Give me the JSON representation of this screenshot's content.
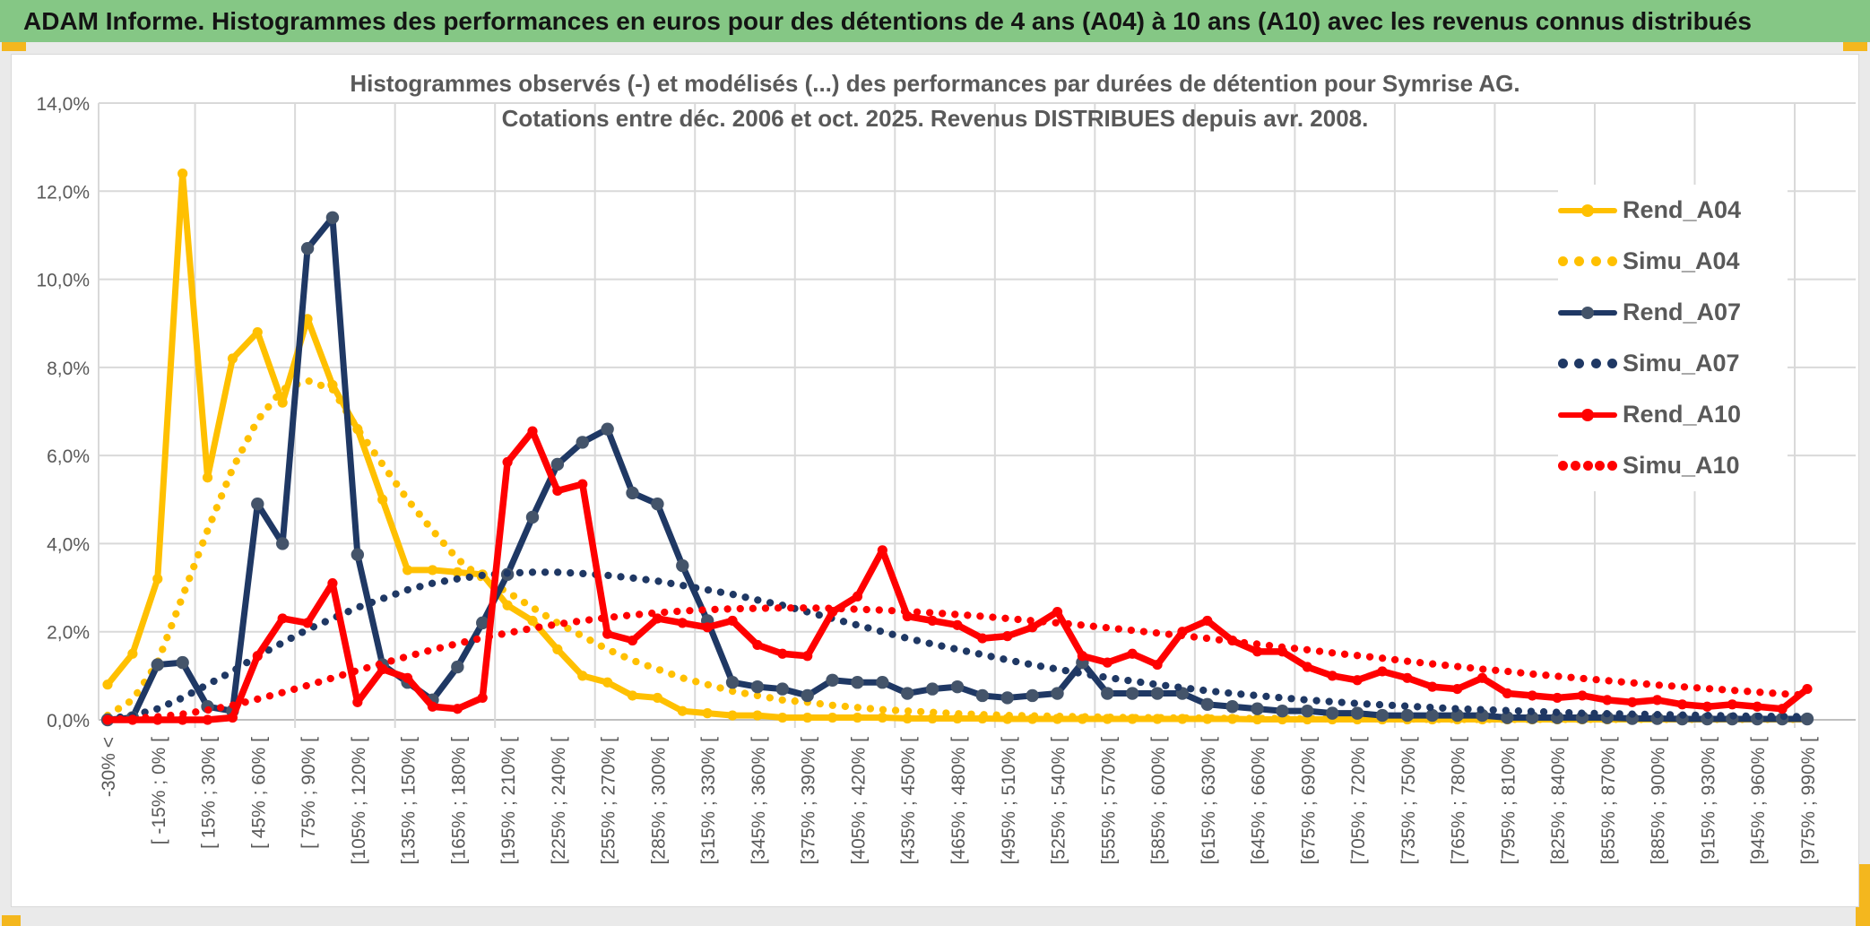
{
  "header": {
    "title": "ADAM Informe. Histogrammes des performances en euros pour des détentions de 4 ans (A04) à 10 ans (A10) avec les revenus connus distribués"
  },
  "chart_data": {
    "type": "line",
    "title_line1": "Histogrammes observés (-) et modélisés (...) des performances par durées de détention pour Symrise AG.",
    "title_line2": "Cotations entre déc. 2006 et oct. 2025. Revenus DISTRIBUES depuis avr. 2008.",
    "xlabel": "",
    "ylabel": "",
    "ylim": [
      0,
      14
    ],
    "grid": true,
    "legend_position": "right",
    "n_bins": 69,
    "bin_width_pct": 15,
    "labels_every_n_bins": 2,
    "y_ticks": [
      "0,0%",
      "2,0%",
      "4,0%",
      "6,0%",
      "8,0%",
      "10,0%",
      "12,0%",
      "14,0%"
    ],
    "x_tick_labels": [
      "-30% <",
      "[ -15% ; 0% [",
      "[ 15% ; 30% [",
      "[ 45% ; 60% [",
      "[ 75% ; 90% [",
      "[105% ; 120% [",
      "[135% ; 150% [",
      "[165% ; 180% [",
      "[195% ; 210% [",
      "[225% ; 240% [",
      "[255% ; 270% [",
      "[285% ; 300% [",
      "[315% ; 330% [",
      "[345% ; 360% [",
      "[375% ; 390% [",
      "[405% ; 420% [",
      "[435% ; 450% [",
      "[465% ; 480% [",
      "[495% ; 510% [",
      "[525% ; 540% [",
      "[555% ; 570% [",
      "[585% ; 600% [",
      "[615% ; 630% [",
      "[645% ; 660% [",
      "[675% ; 690% [",
      "[705% ; 720% [",
      "[735% ; 750% [",
      "[765% ; 780% [",
      "[795% ; 810% [",
      "[825% ; 840% [",
      "[855% ; 870% [",
      "[885% ; 900% [",
      "[915% ; 930% [",
      "[945% ; 960% [",
      "[975% ; 990% ["
    ],
    "series": [
      {
        "name": "Rend_A04",
        "style": "solid",
        "color": "#FFC000",
        "marker": "#FFC000",
        "values": [
          0.8,
          1.5,
          3.2,
          12.4,
          5.5,
          8.2,
          8.8,
          7.2,
          9.1,
          7.6,
          6.6,
          5.0,
          3.4,
          3.4,
          3.35,
          3.3,
          2.6,
          2.25,
          1.6,
          1.0,
          0.85,
          0.55,
          0.5,
          0.2,
          0.15,
          0.1,
          0.1,
          0.05,
          0.05,
          0.05,
          0.05,
          0.05,
          0.03,
          0.03,
          0.03,
          0.03,
          0.02,
          0.02,
          0.02,
          0.02,
          0.02,
          0.02,
          0.02,
          0.02,
          0.02,
          0.02,
          0.01,
          0.01,
          0.01,
          0.01,
          0.01,
          0.01,
          0.01,
          0.01,
          0.01,
          0.01,
          0.01,
          0.01,
          0.01,
          0.01,
          0.01,
          0.01,
          0.01,
          0.01,
          0.01,
          0.01,
          0.01,
          0.01,
          0.01
        ]
      },
      {
        "name": "Simu_A04",
        "style": "dotted",
        "color": "#FFC000",
        "values": [
          0.1,
          0.45,
          1.3,
          2.8,
          4.3,
          5.7,
          6.8,
          7.5,
          7.7,
          7.5,
          6.6,
          5.8,
          5.0,
          4.3,
          3.65,
          3.2,
          2.9,
          2.55,
          2.2,
          1.9,
          1.6,
          1.35,
          1.15,
          0.95,
          0.8,
          0.65,
          0.55,
          0.45,
          0.4,
          0.33,
          0.28,
          0.23,
          0.2,
          0.17,
          0.14,
          0.12,
          0.1,
          0.09,
          0.08,
          0.07,
          0.06,
          0.05,
          0.05,
          0.04,
          0.04,
          0.03,
          0.03,
          0.03,
          0.02,
          0.02,
          0.02,
          0.02,
          0.02,
          0.01,
          0.01,
          0.01,
          0.01,
          0.01,
          0.01,
          0.01,
          0.01,
          0.01,
          0.01,
          0.01,
          0.01,
          0.01,
          0.01,
          0.01,
          0.01
        ]
      },
      {
        "name": "Rend_A07",
        "style": "solid",
        "color": "#1F3864",
        "marker": "#44546A",
        "values": [
          0,
          0.05,
          1.25,
          1.3,
          0.3,
          0.2,
          4.9,
          4.0,
          10.7,
          11.4,
          3.75,
          1.25,
          0.85,
          0.45,
          1.2,
          2.2,
          3.3,
          4.6,
          5.8,
          6.3,
          6.6,
          5.15,
          4.9,
          3.5,
          2.25,
          0.85,
          0.75,
          0.7,
          0.55,
          0.9,
          0.85,
          0.85,
          0.6,
          0.7,
          0.75,
          0.55,
          0.5,
          0.55,
          0.6,
          1.3,
          0.6,
          0.6,
          0.6,
          0.6,
          0.35,
          0.3,
          0.25,
          0.2,
          0.2,
          0.15,
          0.15,
          0.1,
          0.1,
          0.1,
          0.1,
          0.1,
          0.05,
          0.05,
          0.05,
          0.05,
          0.05,
          0.03,
          0.03,
          0.02,
          0.02,
          0.02,
          0.02,
          0.02,
          0.02
        ]
      },
      {
        "name": "Simu_A07",
        "style": "dotted",
        "color": "#1F3864",
        "values": [
          0.02,
          0.1,
          0.25,
          0.5,
          0.8,
          1.1,
          1.45,
          1.75,
          2.05,
          2.3,
          2.55,
          2.75,
          2.95,
          3.1,
          3.2,
          3.28,
          3.33,
          3.35,
          3.35,
          3.32,
          3.28,
          3.22,
          3.15,
          3.05,
          2.95,
          2.85,
          2.72,
          2.6,
          2.45,
          2.3,
          2.15,
          2.0,
          1.85,
          1.72,
          1.6,
          1.48,
          1.36,
          1.25,
          1.15,
          1.05,
          0.96,
          0.88,
          0.8,
          0.73,
          0.66,
          0.6,
          0.55,
          0.5,
          0.45,
          0.41,
          0.37,
          0.34,
          0.31,
          0.28,
          0.25,
          0.23,
          0.21,
          0.19,
          0.17,
          0.15,
          0.14,
          0.13,
          0.12,
          0.11,
          0.1,
          0.09,
          0.08,
          0.08,
          0.07
        ]
      },
      {
        "name": "Rend_A10",
        "style": "solid",
        "color": "#FF0000",
        "marker": "#FF0000",
        "values": [
          0,
          0,
          0,
          0,
          0,
          0.05,
          1.45,
          2.3,
          2.2,
          3.1,
          0.4,
          1.15,
          0.95,
          0.3,
          0.25,
          0.5,
          5.85,
          6.55,
          5.2,
          5.35,
          1.95,
          1.8,
          2.3,
          2.2,
          2.1,
          2.25,
          1.7,
          1.5,
          1.45,
          2.45,
          2.8,
          3.85,
          2.35,
          2.25,
          2.15,
          1.85,
          1.9,
          2.1,
          2.45,
          1.45,
          1.3,
          1.5,
          1.25,
          2.0,
          2.25,
          1.8,
          1.55,
          1.55,
          1.2,
          1.0,
          0.9,
          1.1,
          0.95,
          0.75,
          0.7,
          0.95,
          0.6,
          0.55,
          0.5,
          0.55,
          0.45,
          0.4,
          0.45,
          0.35,
          0.3,
          0.35,
          0.3,
          0.25,
          0.7
        ]
      },
      {
        "name": "Simu_A10",
        "style": "dotted",
        "color": "#FF0000",
        "values": [
          0.01,
          0.03,
          0.07,
          0.13,
          0.22,
          0.33,
          0.47,
          0.62,
          0.78,
          0.95,
          1.12,
          1.28,
          1.44,
          1.59,
          1.73,
          1.86,
          1.97,
          2.08,
          2.17,
          2.25,
          2.32,
          2.38,
          2.43,
          2.47,
          2.5,
          2.52,
          2.53,
          2.54,
          2.54,
          2.53,
          2.51,
          2.49,
          2.46,
          2.43,
          2.39,
          2.35,
          2.3,
          2.25,
          2.2,
          2.15,
          2.09,
          2.03,
          1.97,
          1.91,
          1.85,
          1.78,
          1.72,
          1.65,
          1.59,
          1.52,
          1.46,
          1.4,
          1.33,
          1.27,
          1.21,
          1.15,
          1.1,
          1.04,
          0.99,
          0.94,
          0.89,
          0.84,
          0.79,
          0.75,
          0.71,
          0.67,
          0.63,
          0.59,
          0.56
        ]
      }
    ]
  },
  "colors": {
    "header_green": "#85C785",
    "accent_gold": "#F4B71E",
    "series_gold": "#FFC000",
    "series_navy": "#1F3864",
    "navy_marker": "#44546A",
    "series_red": "#FF0000",
    "gridline": "#D9D9D9",
    "axis_line": "#BFBFBF",
    "text_gray": "#595959",
    "chart_bg": "#FFFFFF",
    "page_bg": "#EAEAEA"
  }
}
